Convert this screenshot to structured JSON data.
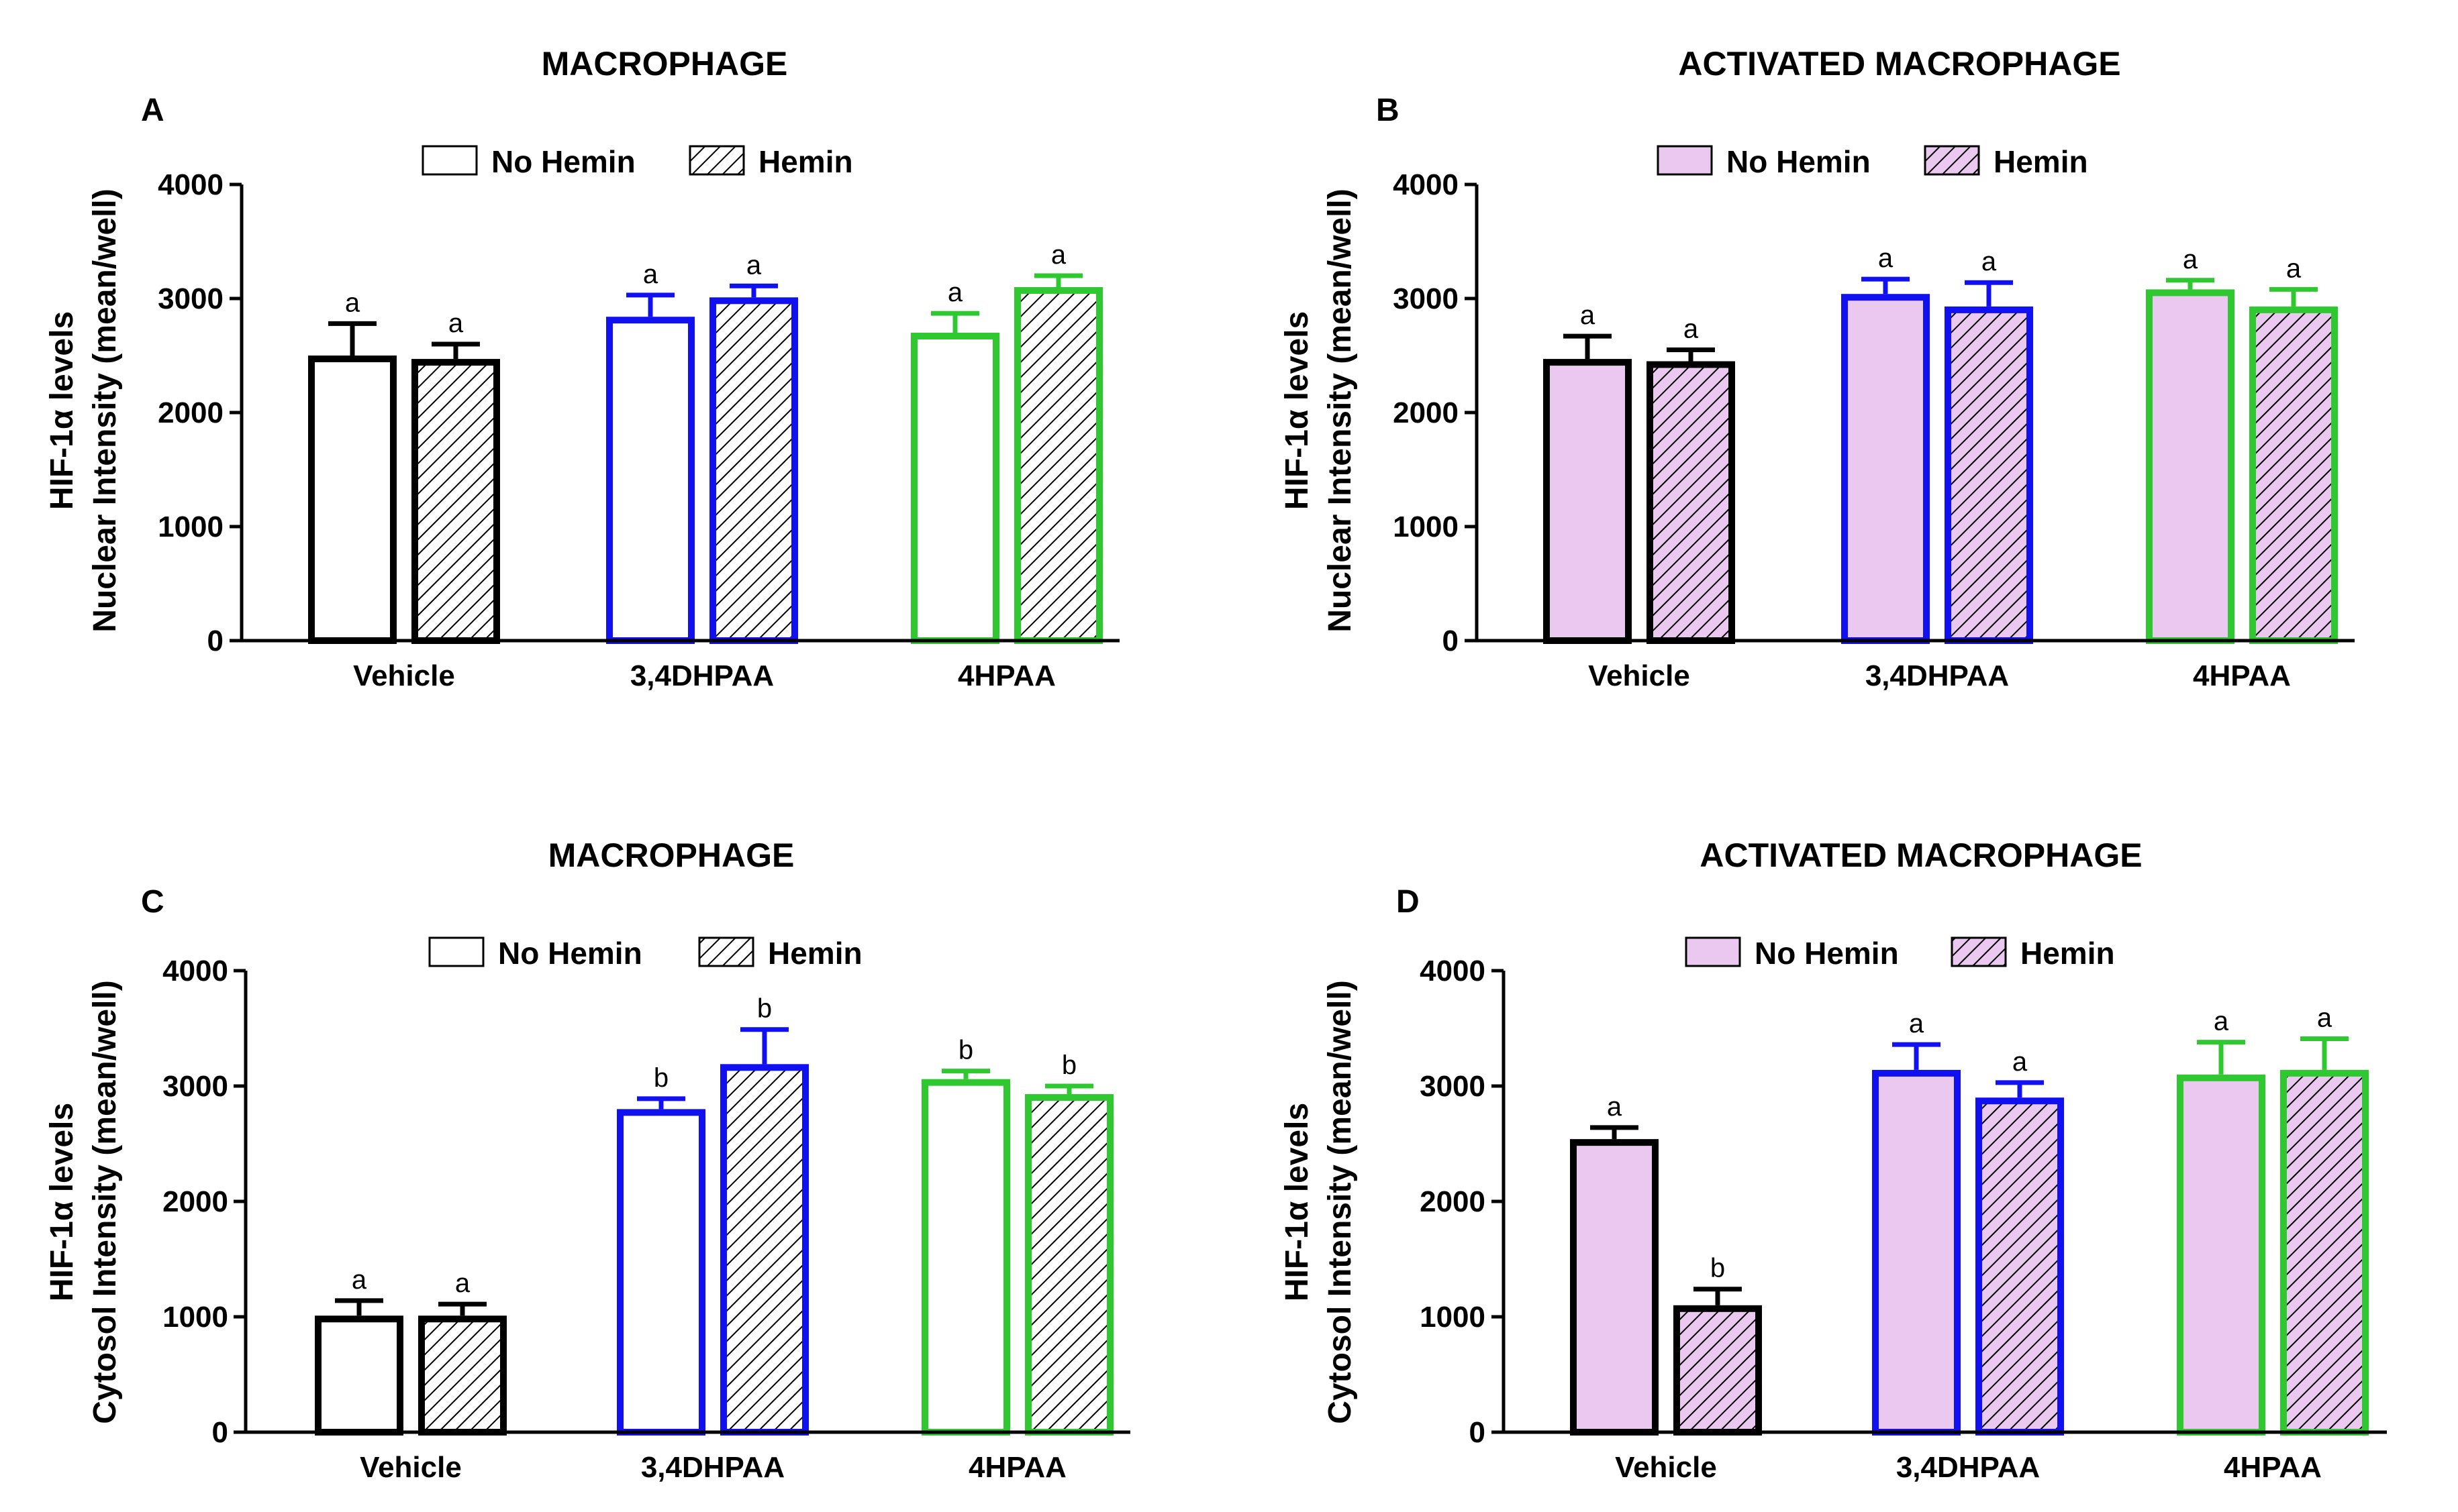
{
  "colors": {
    "black": "#000000",
    "blue": "#1010f0",
    "green": "#30c830",
    "pink_fill": "#ebc8ef",
    "white": "#ffffff"
  },
  "chart_data": [
    {
      "id": "A",
      "type": "bar",
      "panel_label": "A",
      "title": "MACROPHAGE",
      "ylabel_line1": "HIF-1α levels",
      "ylabel_line2": "Nuclear Intensity (mean/well)",
      "ylim": [
        0,
        4000
      ],
      "yticks": [
        "0",
        "1000",
        "2000",
        "3000",
        "4000"
      ],
      "fill": "white",
      "categories": [
        "Vehicle",
        "3,4DHPAA",
        "4HPAA"
      ],
      "category_colors": [
        "black",
        "blue",
        "green"
      ],
      "legend": [
        "No Hemin",
        "Hemin"
      ],
      "series": [
        {
          "name": "No Hemin",
          "pattern": "solid",
          "values": [
            2500,
            2840,
            2700
          ],
          "errors": [
            280,
            190,
            170
          ],
          "labels": [
            "a",
            "a",
            "a"
          ]
        },
        {
          "name": "Hemin",
          "pattern": "hatched",
          "values": [
            2470,
            3010,
            3100
          ],
          "errors": [
            130,
            100,
            100
          ],
          "labels": [
            "a",
            "a",
            "a"
          ]
        }
      ]
    },
    {
      "id": "B",
      "type": "bar",
      "panel_label": "B",
      "title": "ACTIVATED MACROPHAGE",
      "ylabel_line1": "HIF-1α levels",
      "ylabel_line2": "Nuclear Intensity (mean/well)",
      "ylim": [
        0,
        4000
      ],
      "yticks": [
        "0",
        "1000",
        "2000",
        "3000",
        "4000"
      ],
      "fill": "pink",
      "categories": [
        "Vehicle",
        "3,4DHPAA",
        "4HPAA"
      ],
      "category_colors": [
        "black",
        "blue",
        "green"
      ],
      "legend": [
        "No Hemin",
        "Hemin"
      ],
      "series": [
        {
          "name": "No Hemin",
          "pattern": "solid",
          "values": [
            2470,
            3040,
            3080
          ],
          "errors": [
            200,
            130,
            80
          ],
          "labels": [
            "a",
            "a",
            "a"
          ]
        },
        {
          "name": "Hemin",
          "pattern": "hatched",
          "values": [
            2450,
            2930,
            2930
          ],
          "errors": [
            100,
            210,
            150
          ],
          "labels": [
            "a",
            "a",
            "a"
          ]
        }
      ]
    },
    {
      "id": "C",
      "type": "bar",
      "panel_label": "C",
      "title": "MACROPHAGE",
      "ylabel_line1": "HIF-1α levels",
      "ylabel_line2": "Cytosol Intensity (mean/well)",
      "ylim": [
        0,
        4000
      ],
      "yticks": [
        "0",
        "1000",
        "2000",
        "3000",
        "4000"
      ],
      "fill": "white",
      "categories": [
        "Vehicle",
        "3,4DHPAA",
        "4HPAA"
      ],
      "category_colors": [
        "black",
        "blue",
        "green"
      ],
      "legend": [
        "No Hemin",
        "Hemin"
      ],
      "series": [
        {
          "name": "No Hemin",
          "pattern": "solid",
          "values": [
            1010,
            2800,
            3060
          ],
          "errors": [
            130,
            90,
            70
          ],
          "labels": [
            "a",
            "b",
            "b"
          ]
        },
        {
          "name": "Hemin",
          "pattern": "hatched",
          "values": [
            1010,
            3190,
            2930
          ],
          "errors": [
            100,
            300,
            70
          ],
          "labels": [
            "a",
            "b",
            "b"
          ]
        }
      ]
    },
    {
      "id": "D",
      "type": "bar",
      "panel_label": "D",
      "title": "ACTIVATED MACROPHAGE",
      "ylabel_line1": "HIF-1α levels",
      "ylabel_line2": "Cytosol Intensity (mean/well)",
      "ylim": [
        0,
        4000
      ],
      "yticks": [
        "0",
        "1000",
        "2000",
        "3000",
        "4000"
      ],
      "fill": "pink",
      "categories": [
        "Vehicle",
        "3,4DHPAA",
        "4HPAA"
      ],
      "category_colors": [
        "black",
        "blue",
        "green"
      ],
      "legend": [
        "No Hemin",
        "Hemin"
      ],
      "series": [
        {
          "name": "No Hemin",
          "pattern": "solid",
          "values": [
            2540,
            3140,
            3100
          ],
          "errors": [
            100,
            220,
            280
          ],
          "labels": [
            "a",
            "a",
            "a"
          ]
        },
        {
          "name": "Hemin",
          "pattern": "hatched",
          "values": [
            1100,
            2900,
            3140
          ],
          "errors": [
            140,
            130,
            270
          ],
          "labels": [
            "b",
            "a",
            "a"
          ]
        }
      ]
    }
  ]
}
